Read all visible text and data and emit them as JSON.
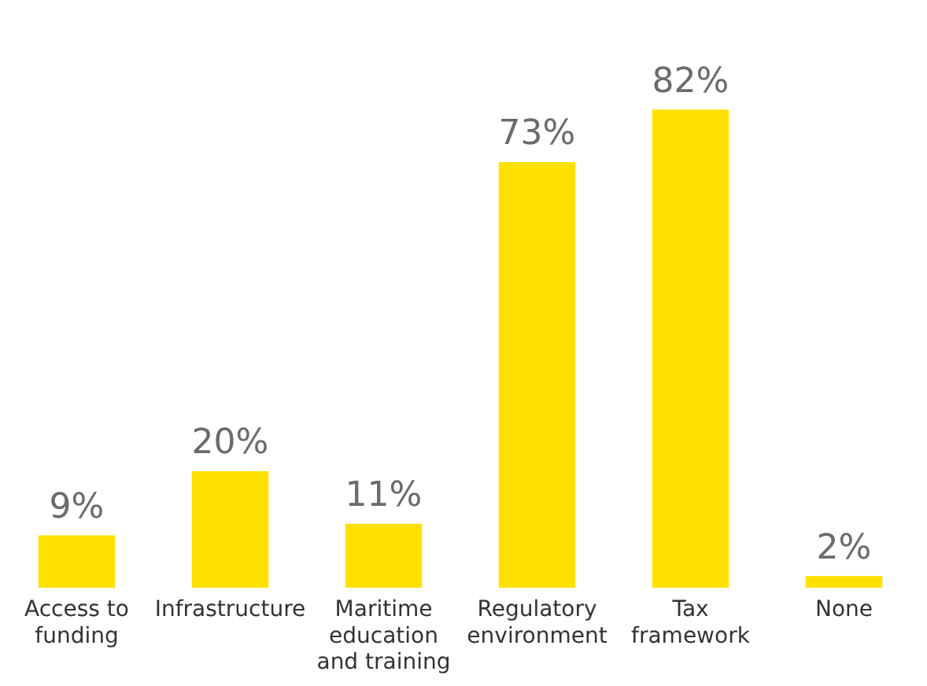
{
  "chart_data": {
    "type": "bar",
    "categories": [
      "Access to funding",
      "Infrastructure",
      "Maritime education and training",
      "Regulatory environment",
      "Tax framework",
      "None"
    ],
    "values": [
      9,
      20,
      11,
      73,
      82,
      2
    ],
    "color": "#ffe100",
    "data_labels": true,
    "value_labels": [
      "9%",
      "20%",
      "11%",
      "73%",
      "82%",
      "2%"
    ],
    "grid": false,
    "legend": false
  }
}
